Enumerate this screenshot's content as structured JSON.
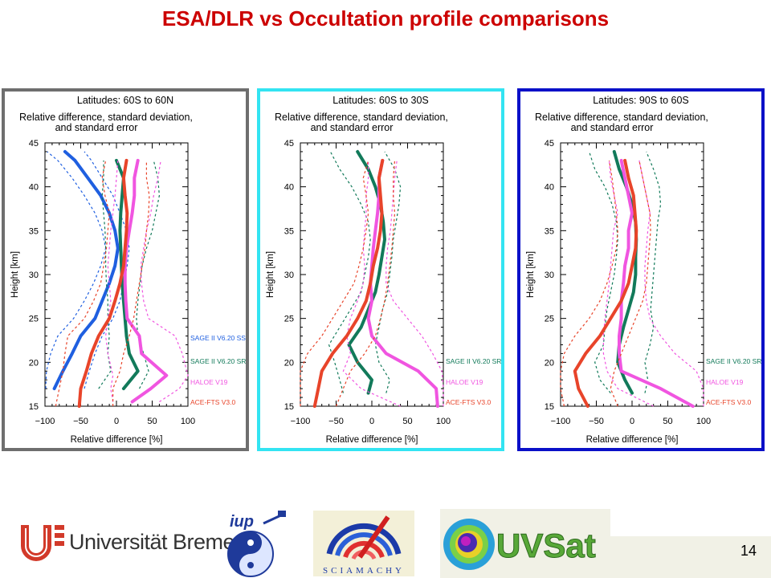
{
  "page_title": "ESA/DLR vs Occultation profile comparisons",
  "page_number": "14",
  "footer": {
    "university": "Universität Bremen",
    "university_mark": "*",
    "iup_label": "iup",
    "sciamachy_label": "SCIAMACHY",
    "uvsat_label": "UVSat"
  },
  "colors": {
    "title": "#cc0000",
    "sage_ss": "#1f5fe0",
    "sage_sr": "#127a5a",
    "haloe": "#f055e0",
    "ace": "#e8442a",
    "panel1_border": "#6e6e6e",
    "panel2_border": "#33e4f2",
    "panel3_border": "#0a10c8"
  },
  "chart_data": [
    {
      "type": "line",
      "title": "Latitudes: 60S to 60N",
      "subtitle_lines": [
        "Relative difference, standard deviation,",
        "and standard error"
      ],
      "xlabel": "Relative difference  [%]",
      "ylabel": "Height [km]",
      "xlim": [
        -100,
        100
      ],
      "ylim": [
        15,
        45
      ],
      "xticks": [
        "−100",
        "−50",
        "0",
        "50",
        "100"
      ],
      "yticks": [
        "15",
        "20",
        "25",
        "30",
        "35",
        "40",
        "45"
      ],
      "grid": false,
      "legend_position": "bottom-right",
      "series": [
        {
          "name": "SAGE II V6.20 SS",
          "color": "#1f5fe0",
          "height": [
            17,
            19,
            21,
            23,
            25,
            27,
            29,
            31,
            33,
            35,
            37,
            39,
            41,
            43,
            44
          ],
          "mean": [
            -87,
            -75,
            -62,
            -50,
            -30,
            -20,
            -10,
            -2,
            2,
            -2,
            -10,
            -22,
            -40,
            -58,
            -72
          ],
          "upper": [
            -45,
            -38,
            -30,
            -20,
            -5,
            5,
            10,
            15,
            18,
            14,
            5,
            -5,
            -20,
            -35,
            -45
          ],
          "lower": [
            -99,
            -98,
            -92,
            -82,
            -60,
            -45,
            -32,
            -22,
            -15,
            -20,
            -30,
            -45,
            -62,
            -82,
            -97
          ]
        },
        {
          "name": "SAGE II V6.20 SR",
          "color": "#127a5a",
          "height": [
            17,
            19,
            21,
            23,
            25,
            27,
            29,
            31,
            33,
            35,
            37,
            39,
            41,
            43
          ],
          "mean": [
            10,
            30,
            18,
            14,
            12,
            10,
            8,
            7,
            6,
            5,
            6,
            8,
            10,
            0
          ],
          "upper": [
            32,
            45,
            38,
            30,
            28,
            30,
            33,
            36,
            42,
            50,
            55,
            60,
            58,
            52
          ],
          "lower": [
            -25,
            -8,
            -12,
            -10,
            -12,
            -12,
            -14,
            -15,
            -15,
            -16,
            -18,
            -20,
            -18,
            -18
          ]
        },
        {
          "name": "HALOE V19",
          "color": "#f055e0",
          "height": [
            15.5,
            17,
            18.5,
            21,
            23,
            25,
            27,
            29,
            31,
            33,
            35,
            37,
            39,
            41,
            43
          ],
          "mean": [
            22,
            48,
            70,
            35,
            32,
            15,
            13,
            12,
            12,
            14,
            18,
            22,
            25,
            25,
            30
          ],
          "upper": [
            60,
            88,
            100,
            92,
            82,
            45,
            38,
            35,
            34,
            38,
            42,
            48,
            52,
            58,
            62
          ],
          "lower": [
            -5,
            -8,
            -5,
            -12,
            -15,
            -12,
            -8,
            -10,
            -12,
            -10,
            -8,
            -5,
            -2,
            0,
            2
          ]
        },
        {
          "name": "ACE-FTS V3.0",
          "color": "#e8442a",
          "height": [
            15,
            17,
            19,
            21,
            23,
            25,
            27,
            29,
            31,
            33,
            35,
            37,
            39,
            41,
            43
          ],
          "mean": [
            -52,
            -50,
            -42,
            -35,
            -25,
            -10,
            -2,
            5,
            10,
            12,
            14,
            15,
            12,
            10,
            14
          ],
          "upper": [
            -5,
            -5,
            5,
            10,
            18,
            24,
            28,
            32,
            36,
            40,
            42,
            45,
            46,
            42,
            42
          ],
          "lower": [
            -85,
            -80,
            -75,
            -72,
            -68,
            -45,
            -32,
            -22,
            -18,
            -14,
            -12,
            -10,
            -16,
            -20,
            -15
          ]
        }
      ]
    },
    {
      "type": "line",
      "title": "Latitudes: 60S to 30S",
      "subtitle_lines": [
        "Relative difference, standard deviation,",
        "and standard error"
      ],
      "xlabel": "Relative difference  [%]",
      "ylabel": "Height [km]",
      "xlim": [
        -100,
        100
      ],
      "ylim": [
        15,
        45
      ],
      "xticks": [
        "−100",
        "−50",
        "0",
        "50",
        "100"
      ],
      "yticks": [
        "15",
        "20",
        "25",
        "30",
        "35",
        "40",
        "45"
      ],
      "grid": false,
      "legend_position": "bottom-right",
      "series": [
        {
          "name": "SAGE II V6.20 SR",
          "color": "#127a5a",
          "height": [
            16.5,
            18,
            20,
            22,
            24,
            26,
            28,
            30,
            32,
            34,
            36,
            38,
            40,
            42,
            44
          ],
          "mean": [
            -5,
            0,
            -20,
            -32,
            -15,
            -5,
            5,
            10,
            14,
            18,
            16,
            12,
            5,
            -5,
            -20
          ],
          "upper": [
            20,
            25,
            10,
            5,
            10,
            15,
            22,
            25,
            28,
            30,
            34,
            38,
            40,
            32,
            18
          ],
          "lower": [
            -40,
            -45,
            -52,
            -60,
            -45,
            -30,
            -15,
            -10,
            -5,
            -2,
            -5,
            -15,
            -28,
            -45,
            -58
          ]
        },
        {
          "name": "HALOE V19",
          "color": "#f055e0",
          "height": [
            15,
            17,
            19,
            21,
            23,
            25,
            27,
            29,
            31,
            33,
            35,
            37,
            39,
            41,
            43
          ],
          "mean": [
            92,
            90,
            65,
            20,
            0,
            -5,
            0,
            -2,
            0,
            2,
            5,
            8,
            10,
            10,
            15
          ],
          "upper": [
            100,
            100,
            98,
            85,
            70,
            50,
            30,
            20,
            20,
            22,
            26,
            28,
            30,
            32,
            35
          ],
          "lower": [
            40,
            -15,
            -40,
            -30,
            -35,
            -30,
            -20,
            -12,
            -10,
            -12,
            -10,
            -8,
            -8,
            -5,
            -5
          ]
        },
        {
          "name": "ACE-FTS V3.0",
          "color": "#e8442a",
          "height": [
            15,
            17,
            19,
            21,
            23,
            25,
            27,
            29,
            31,
            33,
            35,
            37,
            39,
            41,
            43
          ],
          "mean": [
            -80,
            -75,
            -70,
            -55,
            -35,
            -20,
            -8,
            -2,
            2,
            8,
            12,
            14,
            12,
            10,
            15
          ],
          "upper": [
            -50,
            -40,
            -30,
            -10,
            5,
            12,
            18,
            22,
            25,
            28,
            30,
            32,
            30,
            30,
            32
          ],
          "lower": [
            -100,
            -100,
            -100,
            -90,
            -70,
            -55,
            -40,
            -25,
            -18,
            -12,
            -8,
            -5,
            -8,
            -12,
            -5
          ]
        }
      ]
    },
    {
      "type": "line",
      "title": "Latitudes: 90S to 60S",
      "subtitle_lines": [
        "Relative difference, standard deviation,",
        "and standard error"
      ],
      "xlabel": "Relative difference  [%]",
      "ylabel": "Height [km]",
      "xlim": [
        -100,
        100
      ],
      "ylim": [
        15,
        45
      ],
      "xticks": [
        "−100",
        "−50",
        "0",
        "50",
        "100"
      ],
      "yticks": [
        "15",
        "20",
        "25",
        "30",
        "35",
        "40",
        "45"
      ],
      "grid": false,
      "legend_position": "bottom-right",
      "series": [
        {
          "name": "SAGE II V6.20 SR",
          "color": "#127a5a",
          "height": [
            16.5,
            18,
            20,
            22,
            24,
            26,
            28,
            30,
            32,
            34,
            36,
            38,
            40,
            42,
            44
          ],
          "mean": [
            0,
            -10,
            -20,
            -18,
            -12,
            -5,
            2,
            5,
            5,
            6,
            5,
            0,
            -8,
            -18,
            -25
          ],
          "upper": [
            18,
            22,
            18,
            25,
            30,
            26,
            28,
            30,
            32,
            34,
            36,
            40,
            38,
            30,
            20
          ],
          "lower": [
            -30,
            -45,
            -52,
            -40,
            -38,
            -35,
            -30,
            -25,
            -22,
            -20,
            -22,
            -28,
            -38,
            -52,
            -60
          ]
        },
        {
          "name": "HALOE V19",
          "color": "#f055e0",
          "height": [
            15,
            17,
            19,
            21,
            23,
            25,
            27,
            29,
            31,
            33,
            35,
            37,
            39,
            41,
            43
          ],
          "mean": [
            85,
            40,
            -15,
            -18,
            -18,
            -15,
            -15,
            -12,
            -10,
            -5,
            -5,
            0,
            -5,
            -10,
            -15
          ],
          "upper": [
            100,
            100,
            90,
            60,
            40,
            25,
            20,
            18,
            18,
            20,
            22,
            25,
            20,
            15,
            10
          ],
          "lower": [
            30,
            -20,
            -35,
            -40,
            -40,
            -38,
            -35,
            -32,
            -30,
            -28,
            -26,
            -20,
            -25,
            -30,
            -32
          ]
        },
        {
          "name": "ACE-FTS V3.0",
          "color": "#e8442a",
          "height": [
            15,
            17,
            19,
            21,
            23,
            25,
            27,
            29,
            31,
            33,
            35,
            37,
            39,
            41,
            43
          ],
          "mean": [
            -62,
            -75,
            -80,
            -65,
            -45,
            -30,
            -15,
            -5,
            0,
            5,
            6,
            4,
            2,
            -5,
            -10
          ],
          "upper": [
            -20,
            -30,
            -25,
            -15,
            -5,
            5,
            15,
            20,
            22,
            24,
            26,
            25,
            20,
            15,
            10
          ],
          "lower": [
            -95,
            -100,
            -100,
            -95,
            -80,
            -60,
            -45,
            -35,
            -28,
            -22,
            -20,
            -22,
            -25,
            -28,
            -32
          ]
        }
      ]
    }
  ]
}
